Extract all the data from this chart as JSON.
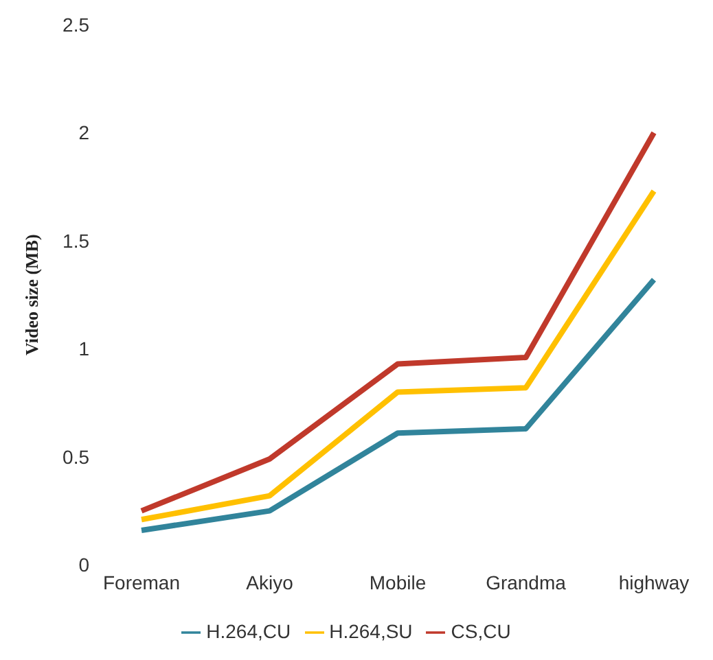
{
  "chart_data": {
    "type": "line",
    "ylabel": "Video size (MB)",
    "categories": [
      "Foreman",
      "Akiyo",
      "Mobile",
      "Grandma",
      "highway"
    ],
    "series": [
      {
        "name": "H.264,CU",
        "color": "#31849b",
        "values": [
          0.16,
          0.25,
          0.61,
          0.63,
          1.32
        ]
      },
      {
        "name": "H.264,SU",
        "color": "#ffc000",
        "values": [
          0.21,
          0.32,
          0.8,
          0.82,
          1.73
        ]
      },
      {
        "name": "CS,CU",
        "color": "#c0392b",
        "values": [
          0.25,
          0.49,
          0.93,
          0.96,
          2.0
        ]
      }
    ],
    "ylim": [
      0,
      2.5
    ],
    "yticks": [
      0,
      0.5,
      1,
      1.5,
      2,
      2.5
    ],
    "grid": false,
    "legend": "bottom",
    "marker": "none",
    "line_style": "solid"
  }
}
